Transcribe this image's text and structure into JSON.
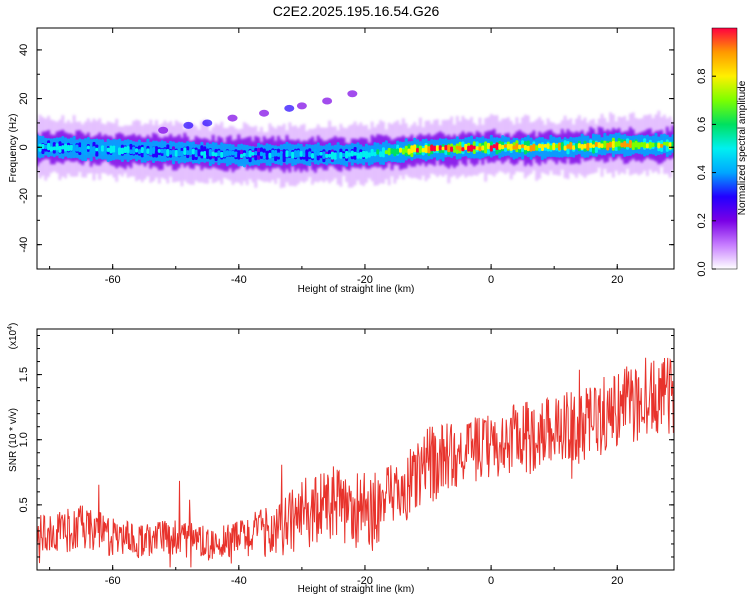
{
  "title": "C2E2.2025.195.16.54.G26",
  "colors": {
    "snr_line": "#e8332c",
    "axis": "#000000"
  },
  "chart_data": [
    {
      "type": "heatmap",
      "xlabel": "Height of straight line (km)",
      "ylabel": "Frequency (Hz)",
      "xlim": [
        -72,
        29
      ],
      "ylim": [
        -50,
        49
      ],
      "xticks": [
        -60,
        -40,
        -20,
        0,
        20
      ],
      "yticks": [
        -40,
        -20,
        0,
        20,
        40
      ],
      "colorbar": {
        "label": "Normalized spectral amplitude",
        "range": [
          0.0,
          1.0
        ],
        "ticks": [
          0.0,
          0.2,
          0.4,
          0.6,
          0.8
        ],
        "colormap": [
          "#ffffff",
          "#c77dff",
          "#7a00e6",
          "#2200ff",
          "#00a6ff",
          "#00f0f0",
          "#00e060",
          "#7cff00",
          "#fff000",
          "#ff9900",
          "#ff0040"
        ]
      },
      "ridge": {
        "x": [
          -72,
          -60,
          -50,
          -40,
          -30,
          -20,
          -12,
          0,
          10,
          20,
          29
        ],
        "freq": [
          0,
          -1,
          -2,
          -3,
          -3,
          -3,
          -1,
          0,
          0,
          1,
          1
        ],
        "amplitude": [
          0.5,
          0.5,
          0.45,
          0.45,
          0.45,
          0.5,
          0.9,
          0.95,
          0.8,
          0.9,
          0.75
        ]
      },
      "blobs": [
        {
          "x": -48,
          "freq": 9,
          "amplitude": 0.2
        },
        {
          "x": -45,
          "freq": 10,
          "amplitude": 0.15
        },
        {
          "x": -52,
          "freq": 7,
          "amplitude": 0.1
        },
        {
          "x": -36,
          "freq": 14,
          "amplitude": 0.1
        },
        {
          "x": -32,
          "freq": 16,
          "amplitude": 0.15
        },
        {
          "x": -30,
          "freq": 17,
          "amplitude": 0.1
        },
        {
          "x": -26,
          "freq": 19,
          "amplitude": 0.08
        },
        {
          "x": -22,
          "freq": 22,
          "amplitude": 0.08
        },
        {
          "x": -41,
          "freq": 12,
          "amplitude": 0.08
        }
      ]
    },
    {
      "type": "line",
      "xlabel": "Height of straight line (km)",
      "ylabel": "SNR (10 * v/v)",
      "multiplier_label": "(x10",
      "multiplier_exp": "4",
      "xlim": [
        -72,
        29
      ],
      "ylim": [
        0,
        1.85
      ],
      "xticks": [
        -60,
        -40,
        -20,
        0,
        20
      ],
      "yticks": [
        0.5,
        1.0,
        1.5
      ],
      "yticklabels": [
        "0.5",
        "1.0",
        "1.5"
      ],
      "series": [
        {
          "x": [
            -72,
            -65,
            -60,
            -55,
            -50,
            -45,
            -40,
            -35,
            -30,
            -25,
            -20,
            -15,
            -10,
            -5,
            0,
            5,
            10,
            15,
            20,
            25,
            29
          ],
          "mean": [
            0.28,
            0.32,
            0.25,
            0.22,
            0.25,
            0.2,
            0.25,
            0.3,
            0.42,
            0.5,
            0.45,
            0.55,
            0.8,
            0.9,
            0.95,
            1.0,
            1.1,
            1.1,
            1.25,
            1.3,
            1.35
          ],
          "spread": [
            0.15,
            0.18,
            0.15,
            0.13,
            0.15,
            0.13,
            0.15,
            0.2,
            0.28,
            0.3,
            0.3,
            0.28,
            0.3,
            0.25,
            0.25,
            0.3,
            0.25,
            0.3,
            0.3,
            0.3,
            0.3
          ]
        }
      ]
    }
  ]
}
